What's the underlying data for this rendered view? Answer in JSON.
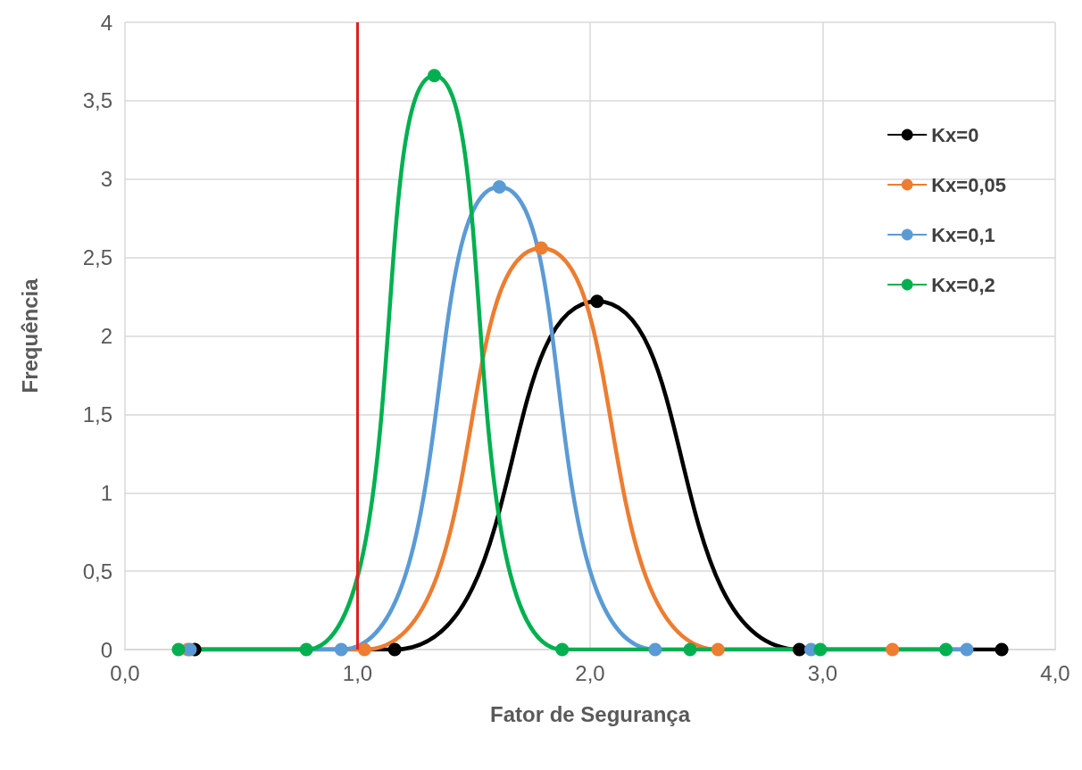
{
  "chart_data": {
    "type": "line",
    "xlabel": "Fator de Segurança",
    "ylabel": "Frequência",
    "xlim": [
      0,
      4
    ],
    "xticks": [
      {
        "value": 0,
        "label": "0,0"
      },
      {
        "value": 1,
        "label": "1,0"
      },
      {
        "value": 2,
        "label": "2,0"
      },
      {
        "value": 3,
        "label": "3,0"
      },
      {
        "value": 4,
        "label": "4,0"
      }
    ],
    "ylim": [
      0,
      4
    ],
    "yticks": [
      0,
      {
        "value": 0.5,
        "label": "0,5"
      },
      1,
      {
        "value": 1.5,
        "label": "1,5"
      },
      2,
      {
        "value": 2.5,
        "label": "2,5"
      },
      3,
      {
        "value": 3.5,
        "label": "3,5"
      },
      4
    ],
    "grid": true,
    "legend": "top right",
    "marker": "circle",
    "line_style": "solid",
    "series": [
      {
        "name": "Kx=0",
        "color": "#000000",
        "x": [
          0.3,
          1.16,
          2.03,
          2.9,
          3.77
        ],
        "values": [
          0,
          0,
          2.22,
          0,
          0
        ]
      },
      {
        "name": "Kx=0,05",
        "color": "#ed7d31",
        "x": [
          0.27,
          1.03,
          1.79,
          2.55,
          3.3
        ],
        "values": [
          0,
          0,
          2.56,
          0,
          0
        ]
      },
      {
        "name": "Kx=0,1",
        "color": "#5b9bd5",
        "x": [
          0.28,
          0.93,
          1.61,
          2.28,
          2.95,
          3.62
        ],
        "values": [
          0,
          0,
          2.95,
          0,
          0,
          0
        ]
      },
      {
        "name": "Kx=0,2",
        "color": "#00b050",
        "x": [
          0.23,
          0.78,
          1.33,
          1.88,
          2.43,
          2.99,
          3.53
        ],
        "values": [
          0,
          0,
          3.66,
          0,
          0,
          0,
          0
        ]
      }
    ],
    "ref_lines": [
      {
        "axis": "x",
        "value": 1,
        "color": "#e02020"
      }
    ]
  }
}
